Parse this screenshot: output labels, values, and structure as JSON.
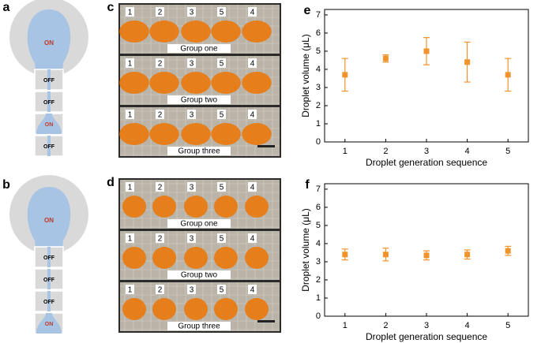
{
  "panels": [
    {
      "label": "a",
      "reservoir": "ON",
      "cells": [
        "OFF",
        "OFF",
        "ON",
        "OFF"
      ]
    },
    {
      "label": "b",
      "reservoir": "ON",
      "cells": [
        "OFF",
        "OFF",
        "OFF",
        "ON"
      ]
    },
    {
      "label": "c",
      "groups": [
        {
          "numbers": [
            "1",
            "2",
            "3",
            "5",
            "4"
          ],
          "name": "Group one"
        },
        {
          "numbers": [
            "1",
            "2",
            "3",
            "5",
            "4"
          ],
          "name": "Group two"
        },
        {
          "numbers": [
            "1",
            "2",
            "3",
            "5",
            "4"
          ],
          "name": "Group three"
        }
      ]
    },
    {
      "label": "d",
      "groups": [
        {
          "numbers": [
            "1",
            "2",
            "3",
            "5",
            "4"
          ],
          "name": "Group one"
        },
        {
          "numbers": [
            "1",
            "2",
            "3",
            "5",
            "4"
          ],
          "name": "Group two"
        },
        {
          "numbers": [
            "1",
            "2",
            "3",
            "5",
            "4"
          ],
          "name": "Group three"
        }
      ]
    }
  ],
  "chart_data": [
    {
      "type": "scatter",
      "label": "e",
      "xlabel": "Droplet generation sequence",
      "ylabel": "Droplet volume (μL)",
      "x": [
        1,
        2,
        3,
        4,
        5
      ],
      "values": [
        3.7,
        4.6,
        5.0,
        4.4,
        3.7
      ],
      "errors": [
        0.9,
        0.2,
        0.75,
        1.1,
        0.9
      ],
      "color": "#f0932b",
      "xlim": [
        0.5,
        5.5
      ],
      "xticks": [
        1,
        2,
        3,
        4,
        5
      ],
      "ylim": [
        0,
        7.3
      ],
      "yticks": [
        0,
        1,
        2,
        3,
        4,
        5,
        6,
        7
      ]
    },
    {
      "type": "scatter",
      "label": "f",
      "xlabel": "Droplet generation sequence",
      "ylabel": "Droplet volume (μL)",
      "x": [
        1,
        2,
        3,
        4,
        5
      ],
      "values": [
        3.4,
        3.4,
        3.35,
        3.4,
        3.6
      ],
      "errors": [
        0.3,
        0.35,
        0.25,
        0.25,
        0.25
      ],
      "color": "#f0932b",
      "xlim": [
        0.5,
        5.5
      ],
      "xticks": [
        1,
        2,
        3,
        4,
        5
      ],
      "ylim": [
        0,
        7.3
      ],
      "yticks": [
        0,
        1,
        2,
        3,
        4,
        5,
        6,
        7
      ]
    }
  ]
}
